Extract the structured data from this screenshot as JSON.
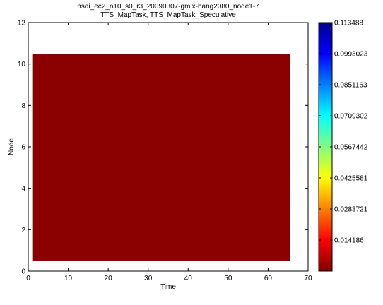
{
  "chart_data": {
    "type": "heatmap",
    "title": "nsdi_ec2_n10_s0_r3_20090307-gmix-hang2080_node1-7",
    "subtitle": "TTS_MapTask, TTS_MapTask_Speculative",
    "xlabel": "Time",
    "ylabel": "Node",
    "xlim": [
      0,
      70
    ],
    "ylim": [
      0,
      12
    ],
    "xticks": [
      "0",
      "10",
      "20",
      "30",
      "40",
      "50",
      "60",
      "70"
    ],
    "yticks": [
      "0",
      "2",
      "4",
      "6",
      "8",
      "10",
      "12"
    ],
    "cells": [
      {
        "x0": 1,
        "x1": 65.5,
        "y0": 0.5,
        "y1": 10.5,
        "value": 0.113488,
        "color": "#8b0000"
      }
    ],
    "colorbar": {
      "range": [
        0,
        0.113488
      ],
      "tick_values": [
        0.113488,
        0.0993023,
        0.0851163,
        0.0709302,
        0.0567442,
        0.0425581,
        0.0283721,
        0.014186
      ],
      "tick_labels": [
        "0.113488",
        "0.0993023",
        "0.0851163",
        "0.0709302",
        "0.0567442",
        "0.0425581",
        "0.0283721",
        "0.014186"
      ],
      "colormap": "jet-reversed"
    },
    "grid": false
  }
}
